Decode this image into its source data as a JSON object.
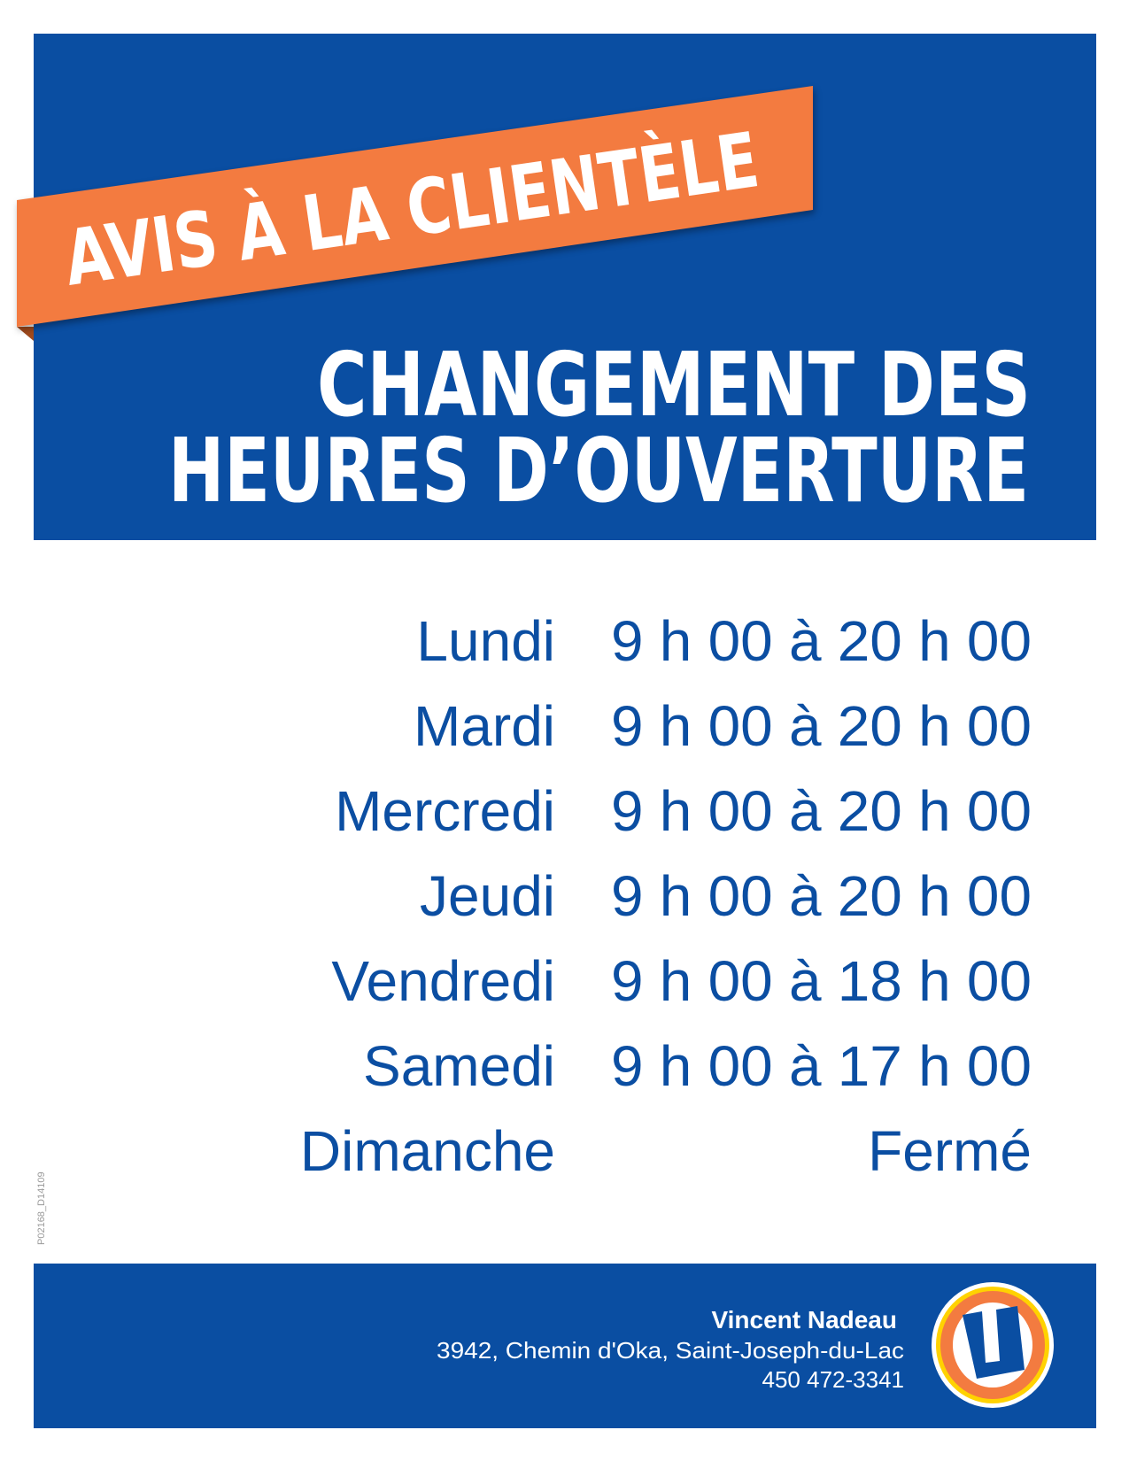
{
  "colors": {
    "brand_blue": "#0a4ea2",
    "ribbon_orange": "#f37b40",
    "logo_yellow": "#ffd200"
  },
  "ribbon": {
    "text": "AVIS À LA CLIENTÈLE"
  },
  "header": {
    "title_line1": "CHANGEMENT DES",
    "title_line2": "HEURES D’OUVERTURE"
  },
  "schedule": [
    {
      "day": "Lundi",
      "hours": "9 h 00 à 20 h 00"
    },
    {
      "day": "Mardi",
      "hours": "9 h 00 à 20 h 00"
    },
    {
      "day": "Mercredi",
      "hours": "9 h 00 à 20 h 00"
    },
    {
      "day": "Jeudi",
      "hours": "9 h 00 à 20 h 00"
    },
    {
      "day": "Vendredi",
      "hours": "9 h 00 à 18 h 00"
    },
    {
      "day": "Samedi",
      "hours": "9 h 00 à 17 h 00"
    },
    {
      "day": "Dimanche",
      "hours": "Fermé"
    }
  ],
  "side_code": "P02168_D14109",
  "footer": {
    "name": "Vincent Nadeau",
    "address": "3942, Chemin d'Oka, Saint-Joseph-du-Lac",
    "phone": "450 472-3341",
    "logo_icon": "u-circle-logo"
  }
}
